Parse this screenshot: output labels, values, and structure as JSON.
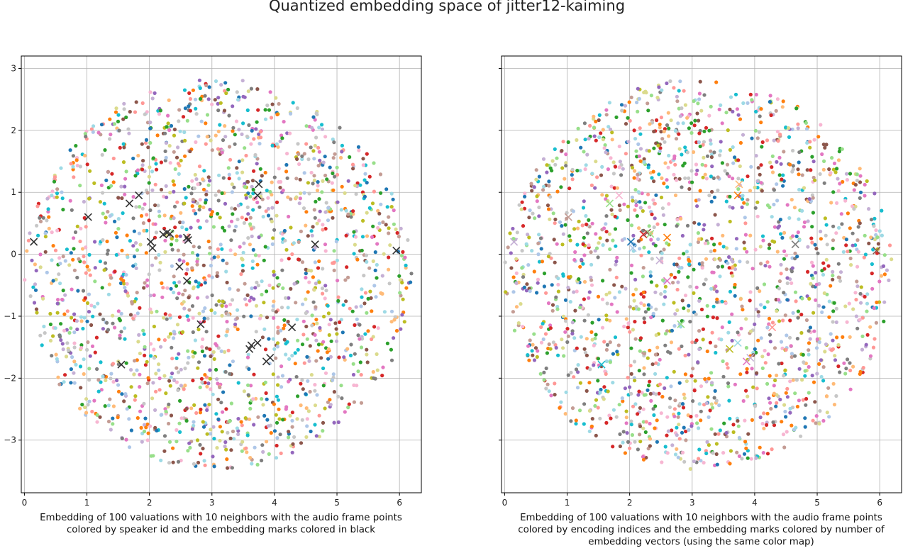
{
  "figure": {
    "title": "Quantized embedding space of jitter12-kaiming"
  },
  "palette": [
    "#1f77b4",
    "#aec7e8",
    "#ff7f0e",
    "#ffbb78",
    "#2ca02c",
    "#98df8a",
    "#d62728",
    "#ff9896",
    "#9467bd",
    "#c5b0d5",
    "#8c564b",
    "#c49c94",
    "#e377c2",
    "#f7b6d2",
    "#7f7f7f",
    "#c7c7c7",
    "#bcbd22",
    "#dbdb8d",
    "#17becf",
    "#9edae5"
  ],
  "chart_data": [
    {
      "type": "scatter",
      "caption": "Embedding of 100 valuations with 10 neighbors with the audio frame points colored by speaker id and the embedding marks colored in black",
      "xlim": [
        -0.05,
        6.35
      ],
      "ylim": [
        -3.85,
        3.2
      ],
      "xticks": [
        0,
        1,
        2,
        3,
        4,
        5,
        6
      ],
      "yticks": [
        -3,
        -2,
        -1,
        0,
        1,
        2,
        3
      ],
      "show_y_tick_labels": true,
      "grid": true,
      "point_coloring": "speaker id",
      "mark_color": "#333333",
      "marks": [
        {
          "x": 0.15,
          "y": 0.2
        },
        {
          "x": 1.02,
          "y": 0.6
        },
        {
          "x": 1.68,
          "y": 0.82
        },
        {
          "x": 1.83,
          "y": 0.95
        },
        {
          "x": 2.02,
          "y": 0.2
        },
        {
          "x": 2.05,
          "y": 0.1
        },
        {
          "x": 2.22,
          "y": 0.32
        },
        {
          "x": 2.28,
          "y": 0.35
        },
        {
          "x": 2.33,
          "y": 0.33
        },
        {
          "x": 2.6,
          "y": 0.27
        },
        {
          "x": 2.62,
          "y": 0.23
        },
        {
          "x": 2.48,
          "y": -0.2
        },
        {
          "x": 2.6,
          "y": -0.43
        },
        {
          "x": 2.82,
          "y": -1.13
        },
        {
          "x": 1.55,
          "y": -1.78
        },
        {
          "x": 3.6,
          "y": -1.53
        },
        {
          "x": 3.63,
          "y": -1.47
        },
        {
          "x": 3.73,
          "y": -1.43
        },
        {
          "x": 3.87,
          "y": -1.73
        },
        {
          "x": 3.93,
          "y": -1.67
        },
        {
          "x": 4.28,
          "y": -1.18
        },
        {
          "x": 3.75,
          "y": 1.13
        },
        {
          "x": 3.73,
          "y": 0.95
        },
        {
          "x": 4.65,
          "y": 0.16
        },
        {
          "x": 5.95,
          "y": 0.06
        }
      ]
    },
    {
      "type": "scatter",
      "caption": "Embedding of 100 valuations with 10 neighbors with the audio frame points colored by encoding indices and the embedding marks colored by number of embedding vectors (using the same color map)",
      "xlim": [
        -0.05,
        6.35
      ],
      "ylim": [
        -3.85,
        3.2
      ],
      "xticks": [
        0,
        1,
        2,
        3,
        4,
        5,
        6
      ],
      "yticks": [
        -3,
        -2,
        -1,
        0,
        1,
        2,
        3
      ],
      "show_y_tick_labels": false,
      "grid": true,
      "point_coloring": "encoding indices",
      "marks": [
        {
          "x": 0.15,
          "y": 0.2,
          "color": "#c5b0d5"
        },
        {
          "x": 1.02,
          "y": 0.6,
          "color": "#c49c94"
        },
        {
          "x": 1.68,
          "y": 0.82,
          "color": "#98df8a"
        },
        {
          "x": 1.83,
          "y": 0.95,
          "color": "#f7b6d2"
        },
        {
          "x": 2.02,
          "y": 0.2,
          "color": "#1f77b4"
        },
        {
          "x": 2.05,
          "y": 0.1,
          "color": "#aec7e8"
        },
        {
          "x": 2.22,
          "y": 0.32,
          "color": "#d62728"
        },
        {
          "x": 2.28,
          "y": 0.35,
          "color": "#8c564b"
        },
        {
          "x": 2.33,
          "y": 0.33,
          "color": "#98df8a"
        },
        {
          "x": 2.6,
          "y": 0.27,
          "color": "#ff7f0e"
        },
        {
          "x": 2.48,
          "y": -0.1,
          "color": "#c5b0d5"
        },
        {
          "x": 2.6,
          "y": -0.43,
          "color": "#e377c2"
        },
        {
          "x": 2.82,
          "y": -1.13,
          "color": "#98df8a"
        },
        {
          "x": 1.55,
          "y": -1.78,
          "color": "#17becf"
        },
        {
          "x": 3.6,
          "y": -1.53,
          "color": "#bcbd22"
        },
        {
          "x": 3.73,
          "y": -1.43,
          "color": "#9edae5"
        },
        {
          "x": 3.87,
          "y": -1.73,
          "color": "#e377c2"
        },
        {
          "x": 3.93,
          "y": -1.67,
          "color": "#c5b0d5"
        },
        {
          "x": 4.28,
          "y": -1.18,
          "color": "#ff9896"
        },
        {
          "x": 3.75,
          "y": 1.13,
          "color": "#ffbb78"
        },
        {
          "x": 3.73,
          "y": 0.95,
          "color": "#ff7f0e"
        },
        {
          "x": 4.65,
          "y": 0.16,
          "color": "#7f7f7f"
        },
        {
          "x": 5.95,
          "y": 0.06,
          "color": "#8c564b"
        }
      ]
    }
  ]
}
